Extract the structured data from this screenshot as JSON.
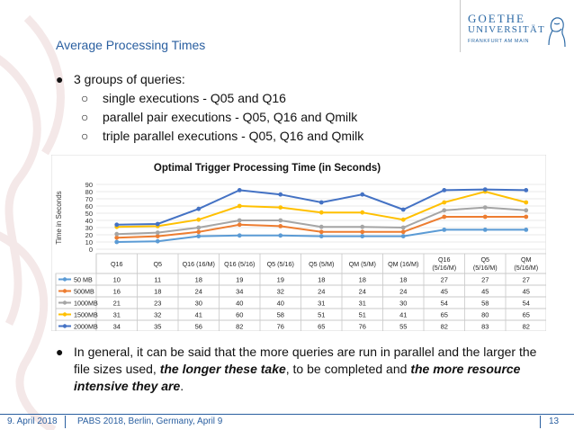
{
  "slide": {
    "title": "Average Processing Times",
    "bullets": [
      "3 groups of queries:",
      "single executions - Q05 and Q16",
      "parallel pair executions - Q05, Q16 and Qmilk",
      "triple parallel executions - Q05, Q16 and Qmilk"
    ],
    "bullet_marker": "●",
    "sub_marker": "○",
    "conclusion": {
      "part1": "In general, it can be said that the more queries are run in parallel and the larger the file sizes used, ",
      "bold1": "the longer these take",
      "part2": ", to be completed and ",
      "bold2": "the more resource intensive they are",
      "part3": "."
    }
  },
  "logo": {
    "name": "GOETHE",
    "university": "UNIVERSITÄT",
    "city": "FRANKFURT AM MAIN"
  },
  "footer": {
    "date": "9. April 2018",
    "conference": "PABS 2018, Berlin, Germany, April 9",
    "page": "13",
    "color": "#2a5fa0"
  },
  "chart_data": {
    "type": "line",
    "title": "Optimal Trigger Processing Time (in Seconds)",
    "ylabel": "Time in Seconds",
    "xlabel": "",
    "ylim": [
      0,
      90
    ],
    "yticks": [
      0,
      10,
      20,
      30,
      40,
      50,
      60,
      70,
      80,
      90
    ],
    "grid": true,
    "categories": [
      "Q16",
      "Q5",
      "Q16 (16/M)",
      "Q16 (5/16)",
      "Q5 (5/16)",
      "Q5 (5/M)",
      "QM (5/M)",
      "QM (16/M)",
      "Q16 (5/16/M)",
      "Q5 (5/16/M)",
      "QM (5/16/M)"
    ],
    "category_lines": [
      [
        "Q16"
      ],
      [
        "Q5"
      ],
      [
        "Q16 (16/M)"
      ],
      [
        "Q16 (5/16)"
      ],
      [
        "Q5 (5/16)"
      ],
      [
        "Q5 (5/M)"
      ],
      [
        "QM (5/M)"
      ],
      [
        "QM (16/M)"
      ],
      [
        "Q16",
        "(5/16/M)"
      ],
      [
        "Q5",
        "(5/16/M)"
      ],
      [
        "QM",
        "(5/16/M)"
      ]
    ],
    "series": [
      {
        "name": "50 MB",
        "color": "#5b9bd5",
        "values": [
          10,
          11,
          18,
          19,
          19,
          18,
          18,
          18,
          27,
          27,
          27
        ]
      },
      {
        "name": "500MB",
        "color": "#ed7d31",
        "values": [
          16,
          18,
          24,
          34,
          32,
          24,
          24,
          24,
          45,
          45,
          45
        ]
      },
      {
        "name": "1000MB",
        "color": "#a5a5a5",
        "values": [
          21,
          23,
          30,
          40,
          40,
          31,
          31,
          30,
          54,
          58,
          54
        ]
      },
      {
        "name": "1500MB",
        "color": "#ffc000",
        "values": [
          31,
          32,
          41,
          60,
          58,
          51,
          51,
          41,
          65,
          80,
          65
        ]
      },
      {
        "name": "2000MB",
        "color": "#4472c4",
        "values": [
          34,
          35,
          56,
          82,
          76,
          65,
          76,
          55,
          82,
          83,
          82
        ]
      }
    ]
  }
}
